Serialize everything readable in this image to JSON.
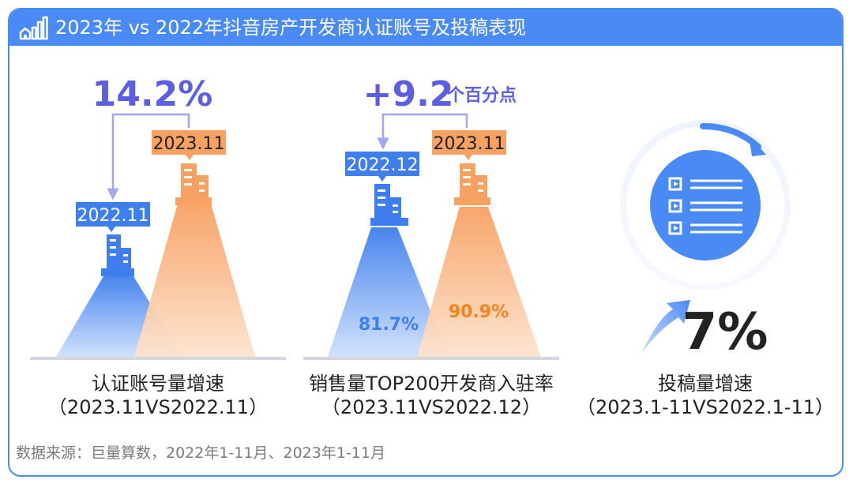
{
  "header": {
    "title": "2023年 vs 2022年抖音房产开发商认证账号及投稿表现",
    "icon": "bar-chart-house-icon"
  },
  "colors": {
    "accent_blue": "#4a8af4",
    "blue_2022": "#3f7fed",
    "orange_2023": "#f7a162",
    "orange_text": "#f5841f",
    "arrow_purple": "#a3a6f2",
    "pct_purple": "#5b5fe0"
  },
  "chart_data": [
    {
      "type": "bar",
      "title": "认证账号量增速",
      "subtitle": "（2023.11VS2022.11）",
      "categories": [
        "2022.11",
        "2023.11"
      ],
      "change_label": "14.2%",
      "change_value": 14.2
    },
    {
      "type": "bar",
      "title": "销售量TOP200开发商入驻率",
      "subtitle": "（2023.11VS2022.12）",
      "categories": [
        "2022.12",
        "2023.11"
      ],
      "values": [
        81.7,
        90.9
      ],
      "value_labels": [
        "81.7%",
        "90.9%"
      ],
      "change_label": "+9.2",
      "change_unit": "个百分点",
      "change_value": 9.2
    },
    {
      "type": "other",
      "title": "投稿量增速",
      "subtitle": "（2023.1-11VS2022.1-11）",
      "value": 7,
      "value_label": "7%"
    }
  ],
  "source": "数据来源：巨量算数，2022年1-11月、2023年1-11月"
}
